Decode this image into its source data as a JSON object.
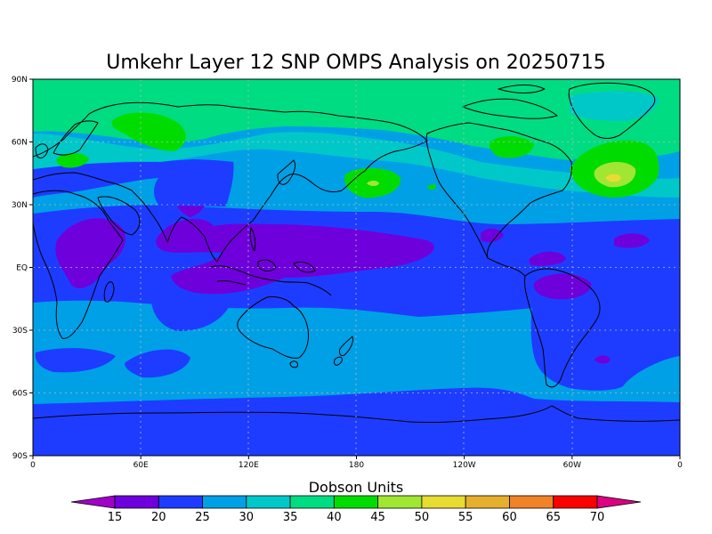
{
  "title": "Umkehr Layer 12 SNP OMPS Analysis on 20250715",
  "map": {
    "lon_ticks": [
      "0",
      "60E",
      "120E",
      "180",
      "120W",
      "60W",
      "0"
    ],
    "lat_ticks": [
      "90N",
      "60N",
      "30N",
      "EQ",
      "30S",
      "60S",
      "90S"
    ]
  },
  "colorbar": {
    "title": "Dobson Units",
    "levels": [
      "15",
      "20",
      "25",
      "30",
      "35",
      "40",
      "45",
      "50",
      "55",
      "60",
      "65",
      "70"
    ],
    "colors": [
      "#a000c8",
      "#6e00dc",
      "#1e3cff",
      "#00a0e6",
      "#00c8c8",
      "#00dc82",
      "#00dc00",
      "#a0e632",
      "#e6dc32",
      "#e6af2d",
      "#f08228",
      "#fa0000",
      "#dc0082"
    ]
  },
  "contour_colors": {
    "c15": "#6e00dc",
    "c20": "#1e3cff",
    "c25": "#00a0e6",
    "c30": "#00c8c8",
    "c35": "#00dc82",
    "c40": "#00dc00",
    "c45": "#a0e632",
    "c50": "#e6dc32"
  }
}
